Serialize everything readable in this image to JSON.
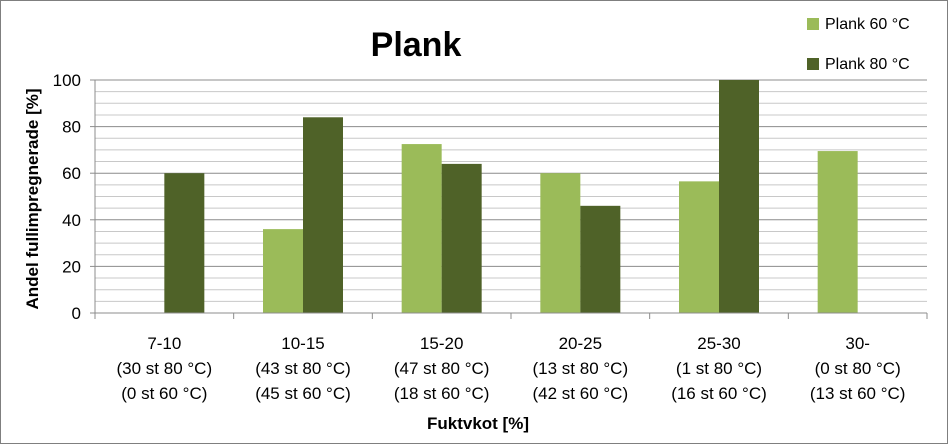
{
  "chart_data": {
    "type": "bar",
    "title": "Plank",
    "xlabel": "Fuktvkot [%]",
    "ylabel": "Andel fullimpregnerade [%]",
    "ylim": [
      0,
      100
    ],
    "yticks": [
      0,
      20,
      40,
      60,
      80,
      100
    ],
    "grid": true,
    "legend_position": "top-right",
    "categories": [
      "7-10",
      "10-15",
      "15-20",
      "20-25",
      "25-30",
      "30-"
    ],
    "category_sublabels": [
      [
        "(30 st 80 °C)",
        "(0 st 60 °C)"
      ],
      [
        "(43 st 80 °C)",
        "(45 st 60 °C)"
      ],
      [
        "(47 st 80 °C)",
        "(18 st 60 °C)"
      ],
      [
        "(13 st 80 °C)",
        "(42 st 60 °C)"
      ],
      [
        "(1 st 80 °C)",
        "(16 st 60 °C)"
      ],
      [
        "(0 st 80 °C)",
        "(13 st 60 °C)"
      ]
    ],
    "series": [
      {
        "name": "Plank 60 °C",
        "color": "#9bbb59",
        "values": [
          null,
          36,
          72.5,
          60,
          56.5,
          69.5
        ]
      },
      {
        "name": "Plank 80 °C",
        "color": "#4f6228",
        "values": [
          60,
          84,
          64,
          46,
          100,
          null
        ]
      }
    ]
  }
}
